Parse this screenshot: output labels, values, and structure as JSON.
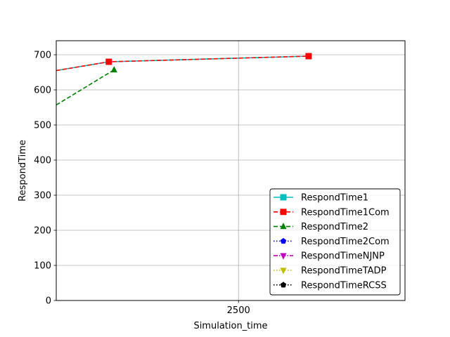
{
  "chart_data": {
    "type": "line",
    "title": "",
    "xlabel": "Simulation_time",
    "ylabel": "RespondTime",
    "xlim": [
      1980,
      2975
    ],
    "ylim": [
      0,
      740
    ],
    "x_ticks": [
      2500
    ],
    "x_tick_labels": [
      "2500"
    ],
    "y_ticks": [
      0,
      100,
      200,
      300,
      400,
      500,
      600,
      700
    ],
    "y_tick_labels": [
      "0",
      "100",
      "200",
      "300",
      "400",
      "500",
      "600",
      "700"
    ],
    "grid": true,
    "legend_position": "lower-right",
    "series": [
      {
        "name": "RespondTime1",
        "color": "#00bfbf",
        "linestyle": "solid",
        "marker": "square",
        "x": [
          1980,
          2130,
          2700
        ],
        "y": [
          655,
          680,
          696
        ],
        "markers_at": [
          1,
          2
        ]
      },
      {
        "name": "RespondTime1Com",
        "color": "#ff0000",
        "linestyle": "dashed",
        "marker": "square",
        "x": [
          1980,
          2130,
          2700
        ],
        "y": [
          655,
          680,
          696
        ],
        "markers_at": [
          1,
          2
        ]
      },
      {
        "name": "RespondTime2",
        "color": "#008000",
        "linestyle": "dashed",
        "marker": "triangle-up",
        "x": [
          1980,
          2145
        ],
        "y": [
          557,
          657
        ],
        "markers_at": [
          1
        ]
      },
      {
        "name": "RespondTime2Com",
        "color": "#0000ff",
        "linestyle": "dotted",
        "marker": "pentagon",
        "x": [],
        "y": [],
        "markers_at": []
      },
      {
        "name": "RespondTimeNJNP",
        "color": "#bf00bf",
        "linestyle": "dashdot",
        "marker": "triangle-down",
        "x": [],
        "y": [],
        "markers_at": []
      },
      {
        "name": "RespondTimeTADP",
        "color": "#bfbf00",
        "linestyle": "dotted",
        "marker": "triangle-down",
        "x": [],
        "y": [],
        "markers_at": []
      },
      {
        "name": "RespondTimeRCSS",
        "color": "#000000",
        "linestyle": "dotted",
        "marker": "pentagon",
        "x": [],
        "y": [],
        "markers_at": []
      }
    ]
  }
}
